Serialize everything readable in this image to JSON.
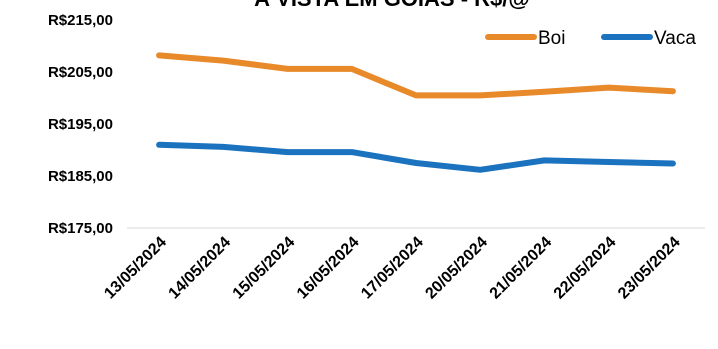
{
  "chart_data": {
    "type": "line",
    "title": "À VISTA EM GOIÁS - R$/@",
    "categories": [
      "13/05/2024",
      "14/05/2024",
      "15/05/2024",
      "16/05/2024",
      "17/05/2024",
      "20/05/2024",
      "21/05/2024",
      "22/05/2024",
      "23/05/2024"
    ],
    "series": [
      {
        "name": "Boi",
        "color": "#E8892A",
        "values": [
          208.2,
          207.2,
          205.6,
          205.6,
          200.5,
          200.5,
          201.2,
          202.0,
          201.3
        ]
      },
      {
        "name": "Vaca",
        "color": "#1B72BE",
        "values": [
          191.0,
          190.6,
          189.6,
          189.6,
          187.5,
          186.2,
          188.0,
          187.7,
          187.4
        ]
      }
    ],
    "yticks": [
      "R$215,00",
      "R$205,00",
      "R$195,00",
      "R$185,00",
      "R$175,00"
    ],
    "ytick_values": [
      215,
      205,
      195,
      185,
      175
    ],
    "ylim": [
      175,
      215
    ],
    "xlabel": "",
    "ylabel": "",
    "grid": false,
    "legend_position": "top-right"
  }
}
